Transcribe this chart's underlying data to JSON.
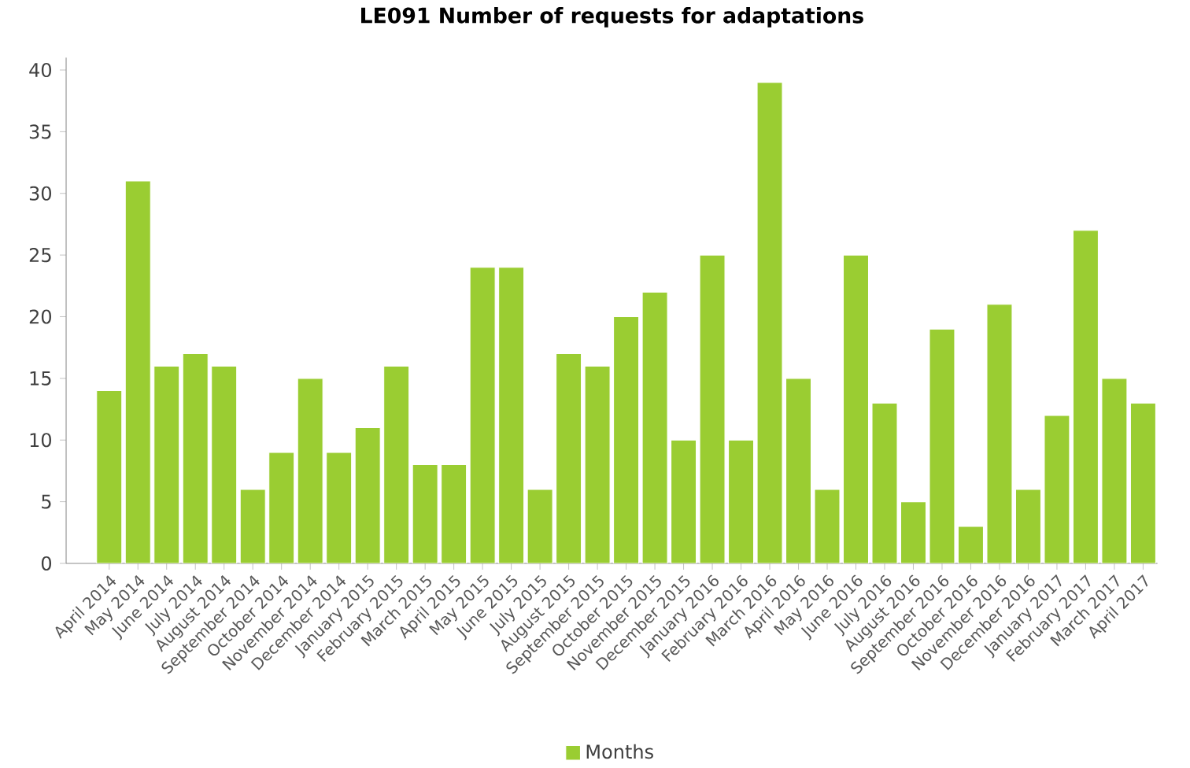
{
  "chart_data": {
    "type": "bar",
    "title": "LE091 Number of requests for adaptations",
    "categories": [
      "April 2014",
      "May 2014",
      "June 2014",
      "July 2014",
      "August 2014",
      "September 2014",
      "October 2014",
      "November 2014",
      "December 2014",
      "January 2015",
      "February 2015",
      "March 2015",
      "April 2015",
      "May 2015",
      "June 2015",
      "July 2015",
      "August 2015",
      "September 2015",
      "October 2015",
      "November 2015",
      "December 2015",
      "January 2016",
      "February 2016",
      "March 2016",
      "April 2016",
      "May 2016",
      "June 2016",
      "July 2016",
      "August 2016",
      "September 2016",
      "October 2016",
      "November 2016",
      "December 2016",
      "January 2017",
      "February 2017",
      "March 2017",
      "April 2017"
    ],
    "series": [
      {
        "name": "Months",
        "color": "#9acd32",
        "values": [
          14,
          31,
          16,
          17,
          16,
          6,
          9,
          15,
          9,
          11,
          16,
          8,
          8,
          24,
          24,
          6,
          17,
          16,
          20,
          22,
          10,
          25,
          10,
          39,
          15,
          6,
          25,
          13,
          5,
          19,
          3,
          21,
          6,
          12,
          27,
          15,
          13
        ]
      }
    ],
    "ylim": [
      0,
      41
    ],
    "yticks": [
      0,
      5,
      10,
      15,
      20,
      25,
      30,
      35,
      40
    ],
    "grid": false,
    "legend": "bottom"
  }
}
